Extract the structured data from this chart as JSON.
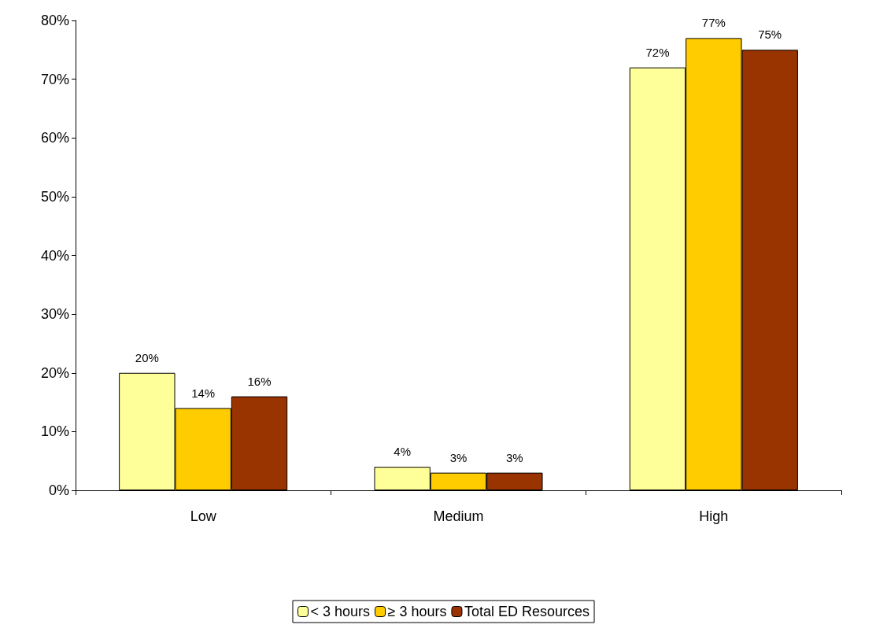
{
  "chart_data": {
    "type": "bar",
    "categories": [
      "Low",
      "Medium",
      "High"
    ],
    "series": [
      {
        "name": "< 3 hours",
        "color": "#ffff99",
        "values": [
          20,
          4,
          72
        ],
        "value_labels": [
          "20%",
          "4%",
          "72%"
        ]
      },
      {
        "name": "≥ 3 hours",
        "color": "#ffcc00",
        "values": [
          14,
          3,
          77
        ],
        "value_labels": [
          "14%",
          "3%",
          "77%"
        ]
      },
      {
        "name": "Total ED Resources",
        "color": "#993300",
        "values": [
          16,
          3,
          75
        ],
        "value_labels": [
          "16%",
          "3%",
          "75%"
        ]
      }
    ],
    "ylim": [
      0,
      80
    ],
    "yticks": [
      {
        "value": 0,
        "label": "0%"
      },
      {
        "value": 10,
        "label": "10%"
      },
      {
        "value": 20,
        "label": "20%"
      },
      {
        "value": 30,
        "label": "30%"
      },
      {
        "value": 40,
        "label": "40%"
      },
      {
        "value": 50,
        "label": "50%"
      },
      {
        "value": 60,
        "label": "60%"
      },
      {
        "value": 70,
        "label": "70%"
      },
      {
        "value": 80,
        "label": "80%"
      }
    ],
    "grid": false,
    "legend": "bottom"
  }
}
